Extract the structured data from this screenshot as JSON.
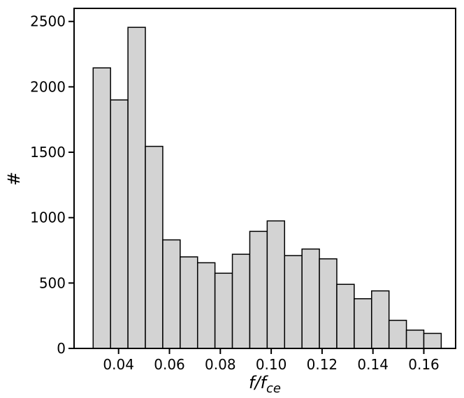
{
  "chart_data": {
    "type": "bar",
    "subtype": "histogram",
    "title": "",
    "xlabel": {
      "main": "f/f",
      "sub": "ce"
    },
    "ylabel": "#",
    "bin_edges": [
      0.03,
      0.036842,
      0.043684,
      0.050526,
      0.057368,
      0.064211,
      0.071053,
      0.077895,
      0.084737,
      0.091579,
      0.098421,
      0.105263,
      0.112105,
      0.118947,
      0.125789,
      0.132632,
      0.139474,
      0.146316,
      0.153158,
      0.16,
      0.166842
    ],
    "values": [
      2145,
      1900,
      2455,
      1545,
      830,
      700,
      655,
      575,
      720,
      895,
      975,
      710,
      760,
      685,
      490,
      380,
      440,
      215,
      140,
      115
    ],
    "xlim": [
      0.0225,
      0.1725
    ],
    "ylim": [
      0,
      2600
    ],
    "xticks": [
      {
        "value": 0.04,
        "label": "0.04"
      },
      {
        "value": 0.06,
        "label": "0.06"
      },
      {
        "value": 0.08,
        "label": "0.08"
      },
      {
        "value": 0.1,
        "label": "0.10"
      },
      {
        "value": 0.12,
        "label": "0.12"
      },
      {
        "value": 0.14,
        "label": "0.14"
      },
      {
        "value": 0.16,
        "label": "0.16"
      }
    ],
    "yticks": [
      {
        "value": 0,
        "label": "0"
      },
      {
        "value": 500,
        "label": "500"
      },
      {
        "value": 1000,
        "label": "1000"
      },
      {
        "value": 1500,
        "label": "1500"
      },
      {
        "value": 2000,
        "label": "2000"
      },
      {
        "value": 2500,
        "label": "2500"
      }
    ],
    "grid": false,
    "bar_fill": "#d3d3d3",
    "bar_edge": "#000000"
  }
}
